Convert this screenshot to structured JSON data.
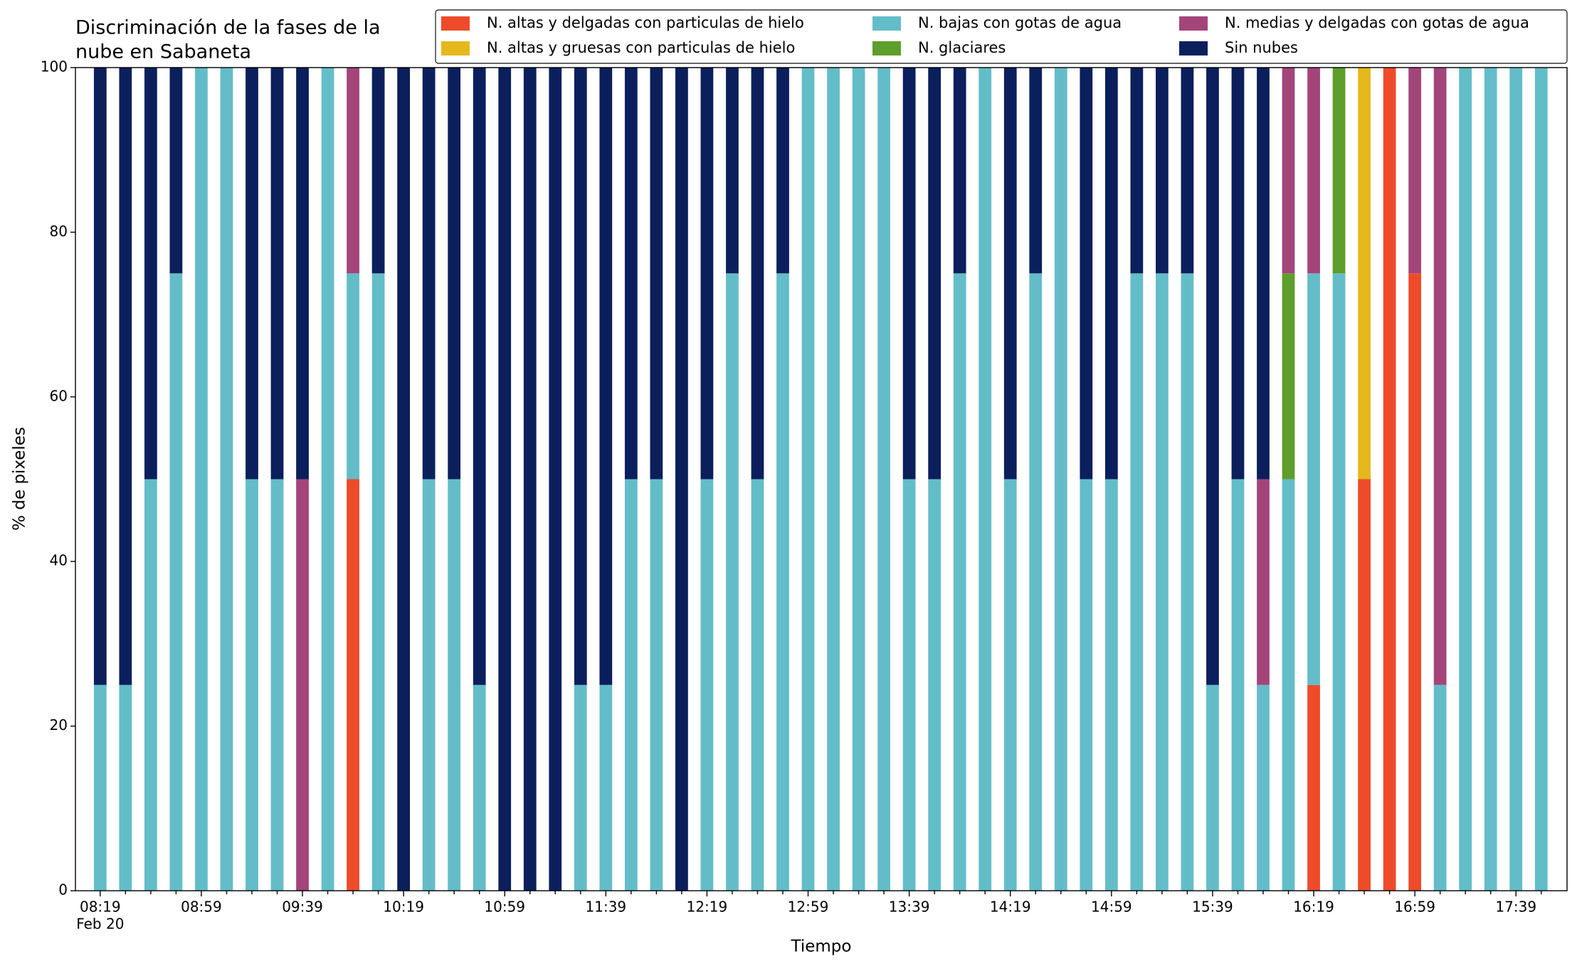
{
  "chart_data": {
    "type": "stacked_bar",
    "title": [
      "Discriminación de la fases de la",
      "nube en Sabaneta"
    ],
    "xlabel": "Tiempo",
    "ylabel": "% de pixeles",
    "x_sublabel": "Feb 20",
    "categories": [
      "08:19",
      null,
      null,
      null,
      "08:59",
      null,
      null,
      null,
      "09:39",
      null,
      null,
      null,
      "10:19",
      null,
      null,
      null,
      "10:59",
      null,
      null,
      null,
      "11:39",
      null,
      null,
      null,
      "12:19",
      null,
      null,
      null,
      "12:59",
      null,
      null,
      null,
      "13:39",
      null,
      null,
      null,
      "14:19",
      null,
      null,
      null,
      "14:59",
      null,
      null,
      null,
      "15:39",
      null,
      null,
      null,
      "16:19",
      null,
      null,
      null,
      "16:59",
      null,
      null,
      null,
      "17:39",
      null
    ],
    "series": [
      {
        "name": "N. altas y delgadas con particulas de hielo",
        "color": "#ee4b2b",
        "values": [
          0,
          0,
          0,
          0,
          0,
          0,
          0,
          0,
          0,
          0,
          50,
          0,
          0,
          0,
          0,
          0,
          0,
          0,
          0,
          0,
          0,
          0,
          0,
          0,
          0,
          0,
          0,
          0,
          0,
          0,
          0,
          0,
          0,
          0,
          0,
          0,
          0,
          0,
          0,
          0,
          0,
          0,
          0,
          0,
          0,
          0,
          0,
          0,
          25,
          0,
          50,
          100,
          75,
          0,
          0,
          0,
          0,
          0
        ]
      },
      {
        "name": "N. altas y gruesas con particulas de hielo",
        "color": "#e5b81c",
        "values": [
          0,
          0,
          0,
          0,
          0,
          0,
          0,
          0,
          0,
          0,
          0,
          0,
          0,
          0,
          0,
          0,
          0,
          0,
          0,
          0,
          0,
          0,
          0,
          0,
          0,
          0,
          0,
          0,
          0,
          0,
          0,
          0,
          0,
          0,
          0,
          0,
          0,
          0,
          0,
          0,
          0,
          0,
          0,
          0,
          0,
          0,
          0,
          0,
          0,
          0,
          50,
          0,
          0,
          0,
          0,
          0,
          0,
          0
        ]
      },
      {
        "name": "N. bajas con gotas de agua",
        "color": "#63bdc8",
        "values": [
          25,
          25,
          50,
          75,
          100,
          100,
          50,
          50,
          0,
          100,
          25,
          75,
          0,
          50,
          50,
          25,
          0,
          0,
          0,
          25,
          25,
          50,
          50,
          0,
          50,
          75,
          50,
          75,
          100,
          100,
          100,
          100,
          50,
          50,
          75,
          100,
          50,
          75,
          100,
          50,
          50,
          75,
          75,
          75,
          25,
          50,
          25,
          50,
          50,
          75,
          0,
          0,
          0,
          25,
          100,
          100,
          100,
          100
        ]
      },
      {
        "name": "N. glaciares",
        "color": "#5e9e2b",
        "values": [
          0,
          0,
          0,
          0,
          0,
          0,
          0,
          0,
          0,
          0,
          0,
          0,
          0,
          0,
          0,
          0,
          0,
          0,
          0,
          0,
          0,
          0,
          0,
          0,
          0,
          0,
          0,
          0,
          0,
          0,
          0,
          0,
          0,
          0,
          0,
          0,
          0,
          0,
          0,
          0,
          0,
          0,
          0,
          0,
          0,
          0,
          0,
          25,
          0,
          25,
          0,
          0,
          0,
          0,
          0,
          0,
          0,
          0
        ]
      },
      {
        "name": "N. medias y delgadas con gotas de agua",
        "color": "#a4457a",
        "values": [
          0,
          0,
          0,
          0,
          0,
          0,
          0,
          0,
          50,
          0,
          25,
          0,
          0,
          0,
          0,
          0,
          0,
          0,
          0,
          0,
          0,
          0,
          0,
          0,
          0,
          0,
          0,
          0,
          0,
          0,
          0,
          0,
          0,
          0,
          0,
          0,
          0,
          0,
          0,
          0,
          0,
          0,
          0,
          0,
          0,
          0,
          25,
          25,
          25,
          0,
          0,
          0,
          25,
          75,
          0,
          0,
          0,
          0
        ]
      },
      {
        "name": "Sin nubes",
        "color": "#0b1f5c",
        "values": [
          75,
          75,
          50,
          25,
          0,
          0,
          50,
          50,
          50,
          0,
          0,
          25,
          100,
          50,
          50,
          75,
          100,
          100,
          100,
          75,
          75,
          50,
          50,
          100,
          50,
          25,
          50,
          25,
          0,
          0,
          0,
          0,
          50,
          50,
          25,
          0,
          50,
          25,
          0,
          50,
          50,
          25,
          25,
          25,
          75,
          50,
          50,
          0,
          0,
          0,
          0,
          0,
          0,
          0,
          0,
          0,
          0,
          0
        ]
      }
    ],
    "ylim": [
      0,
      100
    ],
    "yticks": [
      0,
      20,
      40,
      60,
      80,
      100
    ],
    "legend": "upper right"
  }
}
